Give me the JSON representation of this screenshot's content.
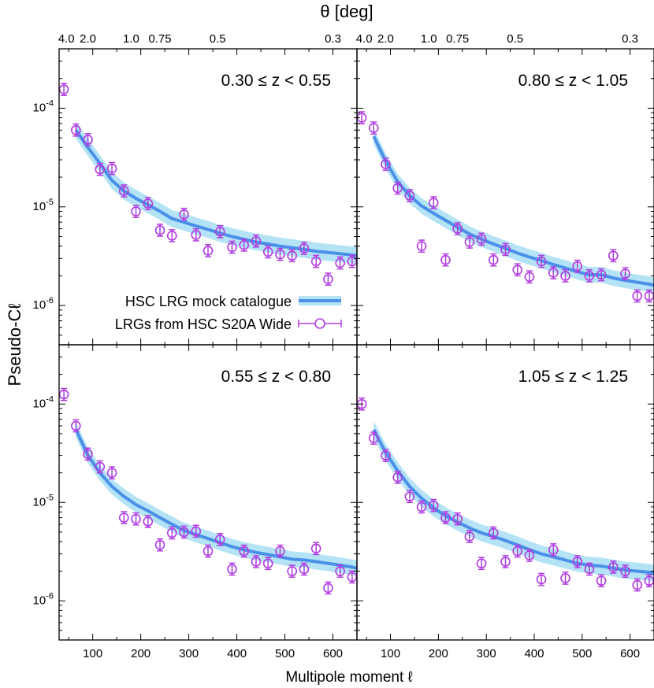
{
  "chart_data": {
    "type": "line",
    "top_axis_title": "θ [deg]",
    "top_tick_labels": [
      {
        "label": "4.0",
        "ell": 45
      },
      {
        "label": "2.0",
        "ell": 90
      },
      {
        "label": "1.0",
        "ell": 180
      },
      {
        "label": "0.75",
        "ell": 240
      },
      {
        "label": "0.5",
        "ell": 360
      },
      {
        "label": "0.3",
        "ell": 600
      }
    ],
    "xlabel": "Multipole moment ℓ",
    "ylabel": "Pseudo-Cℓ",
    "xlim": [
      30,
      650
    ],
    "ylim": [
      4e-07,
      0.0004
    ],
    "x_ticks": [
      100,
      200,
      300,
      400,
      500,
      600
    ],
    "y_ticks": [
      {
        "value": 0.0001,
        "label": "10-4"
      },
      {
        "value": 1e-05,
        "label": "10-5"
      },
      {
        "value": 1e-06,
        "label": "10-6"
      }
    ],
    "legend": {
      "placement": "lower-left of top-left panel",
      "model": "HSC LRG mock catalogue",
      "data": "LRGs from HSC S20A Wide"
    },
    "colors": {
      "model_line": "#4a90e8",
      "model_band": "#b3e3f5",
      "data_points": "#b03ae0"
    },
    "panels": [
      {
        "title": "0.30 ≤ z < 0.55",
        "position": "top-left",
        "model": {
          "ell": [
            65,
            90,
            115,
            140,
            165,
            190,
            215,
            240,
            265,
            290,
            315,
            340,
            365,
            390,
            415,
            440,
            465,
            490,
            515,
            540,
            565,
            590,
            615,
            640,
            650
          ],
          "cl": [
            6e-05,
            4e-05,
            2.75e-05,
            1.85e-05,
            1.45e-05,
            1.22e-05,
            1.05e-05,
            9e-06,
            7.6e-06,
            7e-06,
            6.4e-06,
            5.9e-06,
            5.4e-06,
            5e-06,
            4.7e-06,
            4.4e-06,
            4.2e-06,
            4e-06,
            3.85e-06,
            3.7e-06,
            3.55e-06,
            3.45e-06,
            3.35e-06,
            3.25e-06,
            3.2e-06
          ],
          "band_fraction": 0.22
        },
        "data": {
          "ell": [
            40,
            65,
            90,
            115,
            140,
            165,
            190,
            215,
            240,
            265,
            290,
            315,
            340,
            365,
            390,
            415,
            440,
            465,
            490,
            515,
            540,
            565,
            590,
            615,
            640
          ],
          "cl": [
            0.000155,
            6e-05,
            4.8e-05,
            2.4e-05,
            2.45e-05,
            1.45e-05,
            9e-06,
            1.08e-05,
            5.8e-06,
            5.1e-06,
            8.4e-06,
            5.2e-06,
            3.6e-06,
            5.6e-06,
            3.9e-06,
            4.1e-06,
            4.5e-06,
            3.5e-06,
            3.3e-06,
            3.2e-06,
            3.8e-06,
            2.8e-06,
            1.85e-06,
            2.7e-06,
            2.8e-06
          ],
          "err_fraction": 0.15
        }
      },
      {
        "title": "0.80 ≤ z < 1.05",
        "position": "top-right",
        "model": {
          "ell": [
            65,
            90,
            115,
            140,
            165,
            190,
            215,
            240,
            265,
            290,
            315,
            340,
            365,
            390,
            415,
            440,
            465,
            490,
            515,
            540,
            565,
            590,
            615,
            640,
            650
          ],
          "cl": [
            5.2e-05,
            2.9e-05,
            1.8e-05,
            1.3e-05,
            1.02e-05,
            8.6e-06,
            7.3e-06,
            6.2e-06,
            5.3e-06,
            4.7e-06,
            4.2e-06,
            3.8e-06,
            3.4e-06,
            3.1e-06,
            2.85e-06,
            2.6e-06,
            2.4e-06,
            2.2e-06,
            2.05e-06,
            2.05e-06,
            1.9e-06,
            1.8e-06,
            1.72e-06,
            1.65e-06,
            1.6e-06
          ],
          "band_fraction": 0.2
        },
        "data": {
          "ell": [
            40,
            65,
            90,
            115,
            140,
            165,
            190,
            215,
            240,
            265,
            290,
            315,
            340,
            365,
            390,
            415,
            440,
            465,
            490,
            515,
            540,
            565,
            590,
            615,
            640
          ],
          "cl": [
            8e-05,
            6.3e-05,
            2.7e-05,
            1.55e-05,
            1.3e-05,
            4e-06,
            1.1e-05,
            2.9e-06,
            6e-06,
            4.4e-06,
            4.7e-06,
            2.9e-06,
            3.7e-06,
            2.3e-06,
            1.95e-06,
            2.8e-06,
            2.15e-06,
            2e-06,
            2.5e-06,
            2e-06,
            2.05e-06,
            3.2e-06,
            2.1e-06,
            1.25e-06,
            1.25e-06
          ],
          "err_fraction": 0.15
        }
      },
      {
        "title": "0.55 ≤ z < 0.80",
        "position": "bottom-left",
        "model": {
          "ell": [
            65,
            90,
            115,
            140,
            165,
            190,
            215,
            240,
            265,
            290,
            315,
            340,
            365,
            390,
            415,
            440,
            465,
            490,
            515,
            540,
            565,
            590,
            615,
            640,
            650
          ],
          "cl": [
            5.5e-05,
            3e-05,
            2e-05,
            1.45e-05,
            1.15e-05,
            9.5e-06,
            8.2e-06,
            7e-06,
            6e-06,
            5.2e-06,
            4.7e-06,
            4.3e-06,
            3.9e-06,
            3.55e-06,
            3.3e-06,
            3.1e-06,
            2.95e-06,
            2.8e-06,
            2.65e-06,
            2.6e-06,
            2.5e-06,
            2.4e-06,
            2.3e-06,
            2.2e-06,
            2.15e-06
          ],
          "band_fraction": 0.2
        },
        "data": {
          "ell": [
            40,
            65,
            90,
            115,
            140,
            165,
            190,
            215,
            240,
            265,
            290,
            315,
            340,
            365,
            390,
            415,
            440,
            465,
            490,
            515,
            540,
            565,
            590,
            615,
            640
          ],
          "cl": [
            0.000125,
            6e-05,
            3.1e-05,
            2.3e-05,
            2e-05,
            7e-06,
            6.8e-06,
            6.4e-06,
            3.7e-06,
            4.9e-06,
            5e-06,
            5.1e-06,
            3.2e-06,
            4.2e-06,
            2.1e-06,
            3.2e-06,
            2.5e-06,
            2.4e-06,
            3.2e-06,
            2e-06,
            2.1e-06,
            3.4e-06,
            1.35e-06,
            2e-06,
            1.75e-06
          ],
          "err_fraction": 0.15
        }
      },
      {
        "title": "1.05 ≤ z < 1.25",
        "position": "bottom-right",
        "model": {
          "ell": [
            65,
            90,
            115,
            140,
            165,
            190,
            215,
            240,
            265,
            290,
            315,
            340,
            365,
            390,
            415,
            440,
            465,
            490,
            515,
            540,
            565,
            590,
            615,
            640,
            650
          ],
          "cl": [
            5.5e-05,
            3.2e-05,
            2.1e-05,
            1.45e-05,
            1.1e-05,
            8.8e-06,
            7.3e-06,
            6.3e-06,
            5.5e-06,
            4.9e-06,
            4.5e-06,
            4.1e-06,
            3.7e-06,
            3.3e-06,
            3e-06,
            2.8e-06,
            2.6e-06,
            2.4e-06,
            2.3e-06,
            2.25e-06,
            2.15e-06,
            2.05e-06,
            2e-06,
            1.95e-06,
            1.9e-06
          ],
          "band_fraction": 0.22
        },
        "data": {
          "ell": [
            40,
            65,
            90,
            115,
            140,
            165,
            190,
            215,
            240,
            265,
            290,
            315,
            340,
            365,
            390,
            415,
            440,
            465,
            490,
            515,
            540,
            565,
            590,
            615,
            640
          ],
          "cl": [
            0.0001,
            4.5e-05,
            3e-05,
            1.8e-05,
            1.15e-05,
            9e-06,
            9.3e-06,
            7e-06,
            6.8e-06,
            4.5e-06,
            2.4e-06,
            4.9e-06,
            2.5e-06,
            3.2e-06,
            2.9e-06,
            1.65e-06,
            3.3e-06,
            1.7e-06,
            2.5e-06,
            2.1e-06,
            1.6e-06,
            2.2e-06,
            2e-06,
            1.45e-06,
            1.6e-06
          ],
          "err_fraction": 0.15
        }
      }
    ]
  }
}
